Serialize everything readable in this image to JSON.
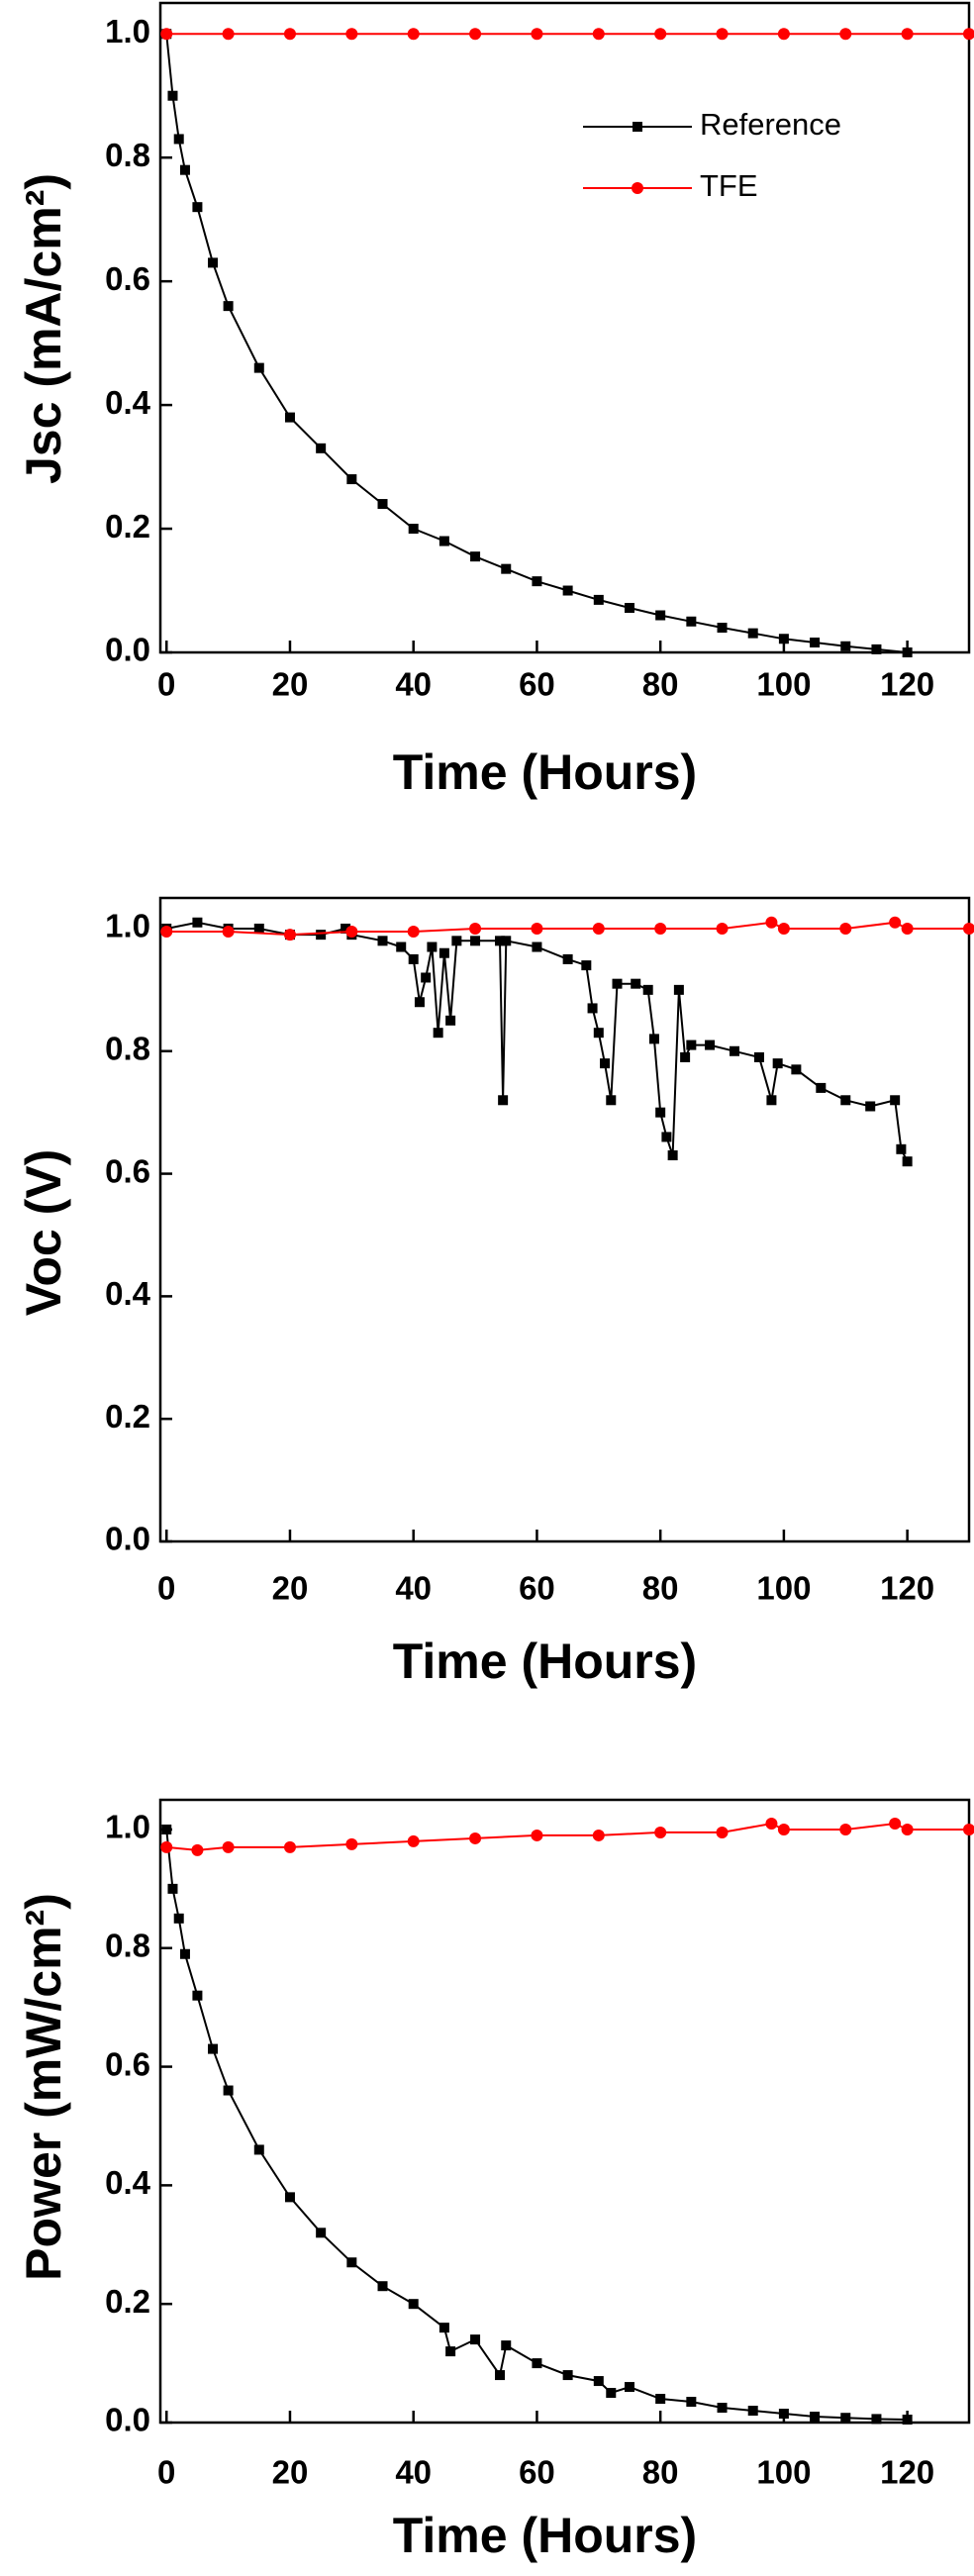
{
  "chart_data": [
    {
      "type": "line",
      "xlabel": "Time (Hours)",
      "ylabel": "Jsc (mA/cm²)",
      "xlim": [
        -1,
        130
      ],
      "ylim": [
        0,
        1.05
      ],
      "xticks": [
        0,
        20,
        40,
        60,
        80,
        100,
        120
      ],
      "yticks": [
        {
          "value": 0,
          "label": "0.0"
        },
        {
          "value": 0.2,
          "label": "0.2"
        },
        {
          "value": 0.4,
          "label": "0.4"
        },
        {
          "value": 0.6,
          "label": "0.6"
        },
        {
          "value": 0.8,
          "label": "0.8"
        },
        {
          "value": 1.0,
          "label": "1.0"
        }
      ],
      "legend": "upper right",
      "series": [
        {
          "name": "Reference",
          "color": "#000000",
          "marker": "square",
          "x": [
            0,
            1,
            2,
            3,
            5,
            7.5,
            10,
            15,
            20,
            25,
            30,
            35,
            40,
            45,
            50,
            55,
            60,
            65,
            70,
            75,
            80,
            85,
            90,
            95,
            100,
            105,
            110,
            115,
            120
          ],
          "values": [
            1.0,
            0.9,
            0.83,
            0.78,
            0.72,
            0.63,
            0.56,
            0.46,
            0.38,
            0.33,
            0.28,
            0.24,
            0.2,
            0.18,
            0.155,
            0.135,
            0.115,
            0.1,
            0.085,
            0.072,
            0.06,
            0.05,
            0.04,
            0.031,
            0.022,
            0.016,
            0.01,
            0.005,
            0.0
          ]
        },
        {
          "name": "TFE",
          "color": "#ff0000",
          "marker": "circle",
          "x": [
            0,
            10,
            20,
            30,
            40,
            50,
            60,
            70,
            80,
            90,
            100,
            110,
            120,
            130
          ],
          "values": [
            1.0,
            1.0,
            1.0,
            1.0,
            1.0,
            1.0,
            1.0,
            1.0,
            1.0,
            1.0,
            1.0,
            1.0,
            1.0,
            1.0
          ]
        }
      ]
    },
    {
      "type": "line",
      "xlabel": "Time (Hours)",
      "ylabel": "Voc (V)",
      "xlim": [
        -1,
        130
      ],
      "ylim": [
        0,
        1.05
      ],
      "xticks": [
        0,
        20,
        40,
        60,
        80,
        100,
        120
      ],
      "yticks": [
        {
          "value": 0,
          "label": "0.0"
        },
        {
          "value": 0.2,
          "label": "0.2"
        },
        {
          "value": 0.4,
          "label": "0.4"
        },
        {
          "value": 0.6,
          "label": "0.6"
        },
        {
          "value": 0.8,
          "label": "0.8"
        },
        {
          "value": 1.0,
          "label": "1.0"
        }
      ],
      "series": [
        {
          "name": "Reference",
          "color": "#000000",
          "marker": "square",
          "x": [
            0,
            5,
            10,
            15,
            20,
            25,
            29,
            30,
            35,
            38,
            40,
            41,
            42,
            43,
            44,
            45,
            46,
            47,
            50,
            54,
            54.5,
            55,
            60,
            65,
            68,
            69,
            70,
            71,
            72,
            73,
            76,
            78,
            79,
            80,
            81,
            82,
            83,
            84,
            85,
            88,
            92,
            96,
            98,
            99,
            102,
            106,
            110,
            114,
            118,
            119,
            120
          ],
          "values": [
            1.0,
            1.01,
            1.0,
            1.0,
            0.99,
            0.99,
            1.0,
            0.99,
            0.98,
            0.97,
            0.95,
            0.88,
            0.92,
            0.97,
            0.83,
            0.96,
            0.85,
            0.98,
            0.98,
            0.98,
            0.72,
            0.98,
            0.97,
            0.95,
            0.94,
            0.87,
            0.83,
            0.78,
            0.72,
            0.91,
            0.91,
            0.9,
            0.82,
            0.7,
            0.66,
            0.63,
            0.9,
            0.79,
            0.81,
            0.81,
            0.8,
            0.79,
            0.72,
            0.78,
            0.77,
            0.74,
            0.72,
            0.71,
            0.72,
            0.64,
            0.62
          ]
        },
        {
          "name": "TFE",
          "color": "#ff0000",
          "marker": "circle",
          "x": [
            0,
            10,
            20,
            30,
            40,
            50,
            60,
            70,
            80,
            90,
            98,
            100,
            110,
            118,
            120,
            130
          ],
          "values": [
            0.995,
            0.995,
            0.99,
            0.995,
            0.995,
            1.0,
            1.0,
            1.0,
            1.0,
            1.0,
            1.01,
            1.0,
            1.0,
            1.01,
            1.0,
            1.0
          ]
        }
      ]
    },
    {
      "type": "line",
      "xlabel": "Time (Hours)",
      "ylabel": "Power (mW/cm²)",
      "xlim": [
        -1,
        130
      ],
      "ylim": [
        0,
        1.05
      ],
      "xticks": [
        0,
        20,
        40,
        60,
        80,
        100,
        120
      ],
      "yticks": [
        {
          "value": 0,
          "label": "0.0"
        },
        {
          "value": 0.2,
          "label": "0.2"
        },
        {
          "value": 0.4,
          "label": "0.4"
        },
        {
          "value": 0.6,
          "label": "0.6"
        },
        {
          "value": 0.8,
          "label": "0.8"
        },
        {
          "value": 1.0,
          "label": "1.0"
        }
      ],
      "series": [
        {
          "name": "Reference",
          "color": "#000000",
          "marker": "square",
          "x": [
            0,
            1,
            2,
            3,
            5,
            7.5,
            10,
            15,
            20,
            25,
            30,
            35,
            40,
            45,
            46,
            50,
            54,
            55,
            60,
            65,
            70,
            72,
            75,
            80,
            85,
            90,
            95,
            100,
            105,
            110,
            115,
            120
          ],
          "values": [
            1.0,
            0.9,
            0.85,
            0.79,
            0.72,
            0.63,
            0.56,
            0.46,
            0.38,
            0.32,
            0.27,
            0.23,
            0.2,
            0.16,
            0.12,
            0.14,
            0.08,
            0.13,
            0.1,
            0.08,
            0.07,
            0.05,
            0.06,
            0.04,
            0.035,
            0.025,
            0.02,
            0.015,
            0.01,
            0.008,
            0.006,
            0.005
          ]
        },
        {
          "name": "TFE",
          "color": "#ff0000",
          "marker": "circle",
          "x": [
            0,
            5,
            10,
            20,
            30,
            40,
            50,
            60,
            70,
            80,
            90,
            98,
            100,
            110,
            118,
            120,
            130
          ],
          "values": [
            0.97,
            0.965,
            0.97,
            0.97,
            0.975,
            0.98,
            0.985,
            0.99,
            0.99,
            0.995,
            0.995,
            1.01,
            1.0,
            1.0,
            1.01,
            1.0,
            1.0
          ]
        }
      ]
    }
  ]
}
